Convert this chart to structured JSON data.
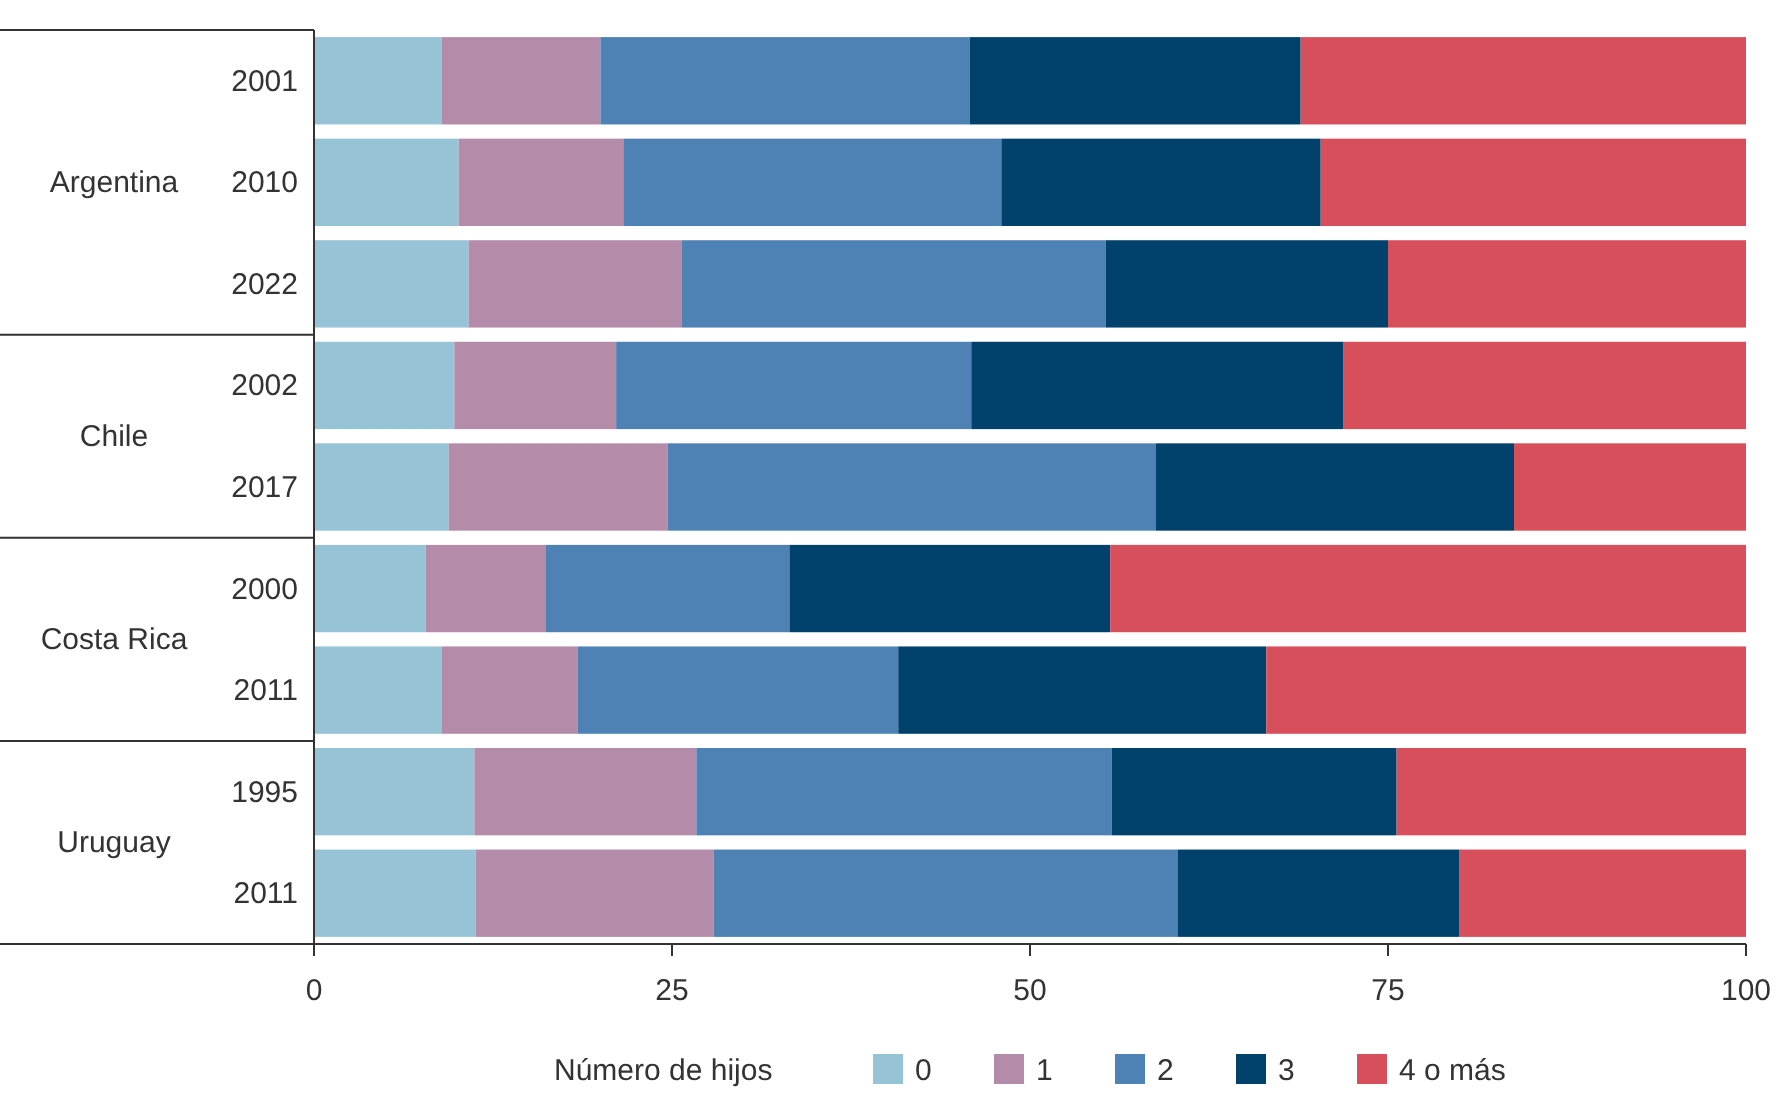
{
  "chart_data": {
    "type": "bar",
    "orientation": "horizontal",
    "stacked": true,
    "categories": [
      "2001",
      "2010",
      "2022",
      "2002",
      "2017",
      "2000",
      "2011",
      "1995",
      "2011"
    ],
    "series": [
      {
        "name": "0",
        "color": "#96c4d6",
        "values": [
          8.9,
          10.1,
          10.8,
          9.8,
          9.4,
          7.8,
          8.9,
          11.2,
          11.3
        ]
      },
      {
        "name": "1",
        "color": "#b48caa",
        "values": [
          11.1,
          11.5,
          14.9,
          11.3,
          15.3,
          8.4,
          9.5,
          15.5,
          16.6
        ]
      },
      {
        "name": "2",
        "color": "#4e81b4",
        "values": [
          25.8,
          26.4,
          29.6,
          24.8,
          34.1,
          17.0,
          22.4,
          29.0,
          32.4
        ]
      },
      {
        "name": "3",
        "color": "#00426c",
        "values": [
          23.1,
          22.3,
          19.7,
          26.0,
          25.0,
          22.4,
          25.7,
          19.9,
          19.7
        ]
      },
      {
        "name": "4 o más",
        "color": "#d84f5c",
        "values": [
          31.1,
          29.7,
          25.0,
          28.1,
          16.2,
          44.4,
          33.5,
          24.4,
          20.0
        ]
      }
    ],
    "xlim": [
      0,
      100
    ],
    "xticks": [
      0,
      25,
      50,
      75,
      100
    ],
    "legend": "bottom",
    "legend_title": "Número de hijos",
    "annotations": [
      "Argentina",
      "Chile",
      "Costa Rica",
      "Uruguay"
    ]
  }
}
